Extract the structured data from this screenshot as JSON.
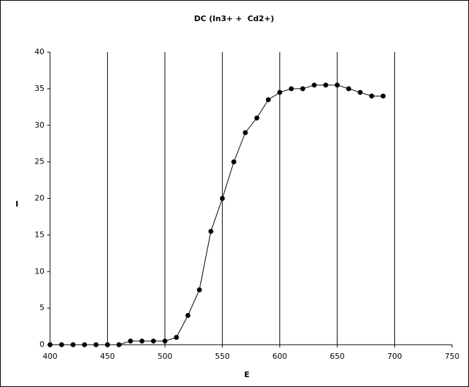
{
  "chart_data": {
    "type": "line",
    "title": "DC (In3+ +  Cd2+)",
    "x_label": "E",
    "y_label": "I",
    "x": [
      400,
      410,
      420,
      430,
      440,
      450,
      460,
      470,
      480,
      490,
      500,
      510,
      520,
      530,
      540,
      550,
      560,
      570,
      580,
      590,
      600,
      610,
      620,
      630,
      640,
      650,
      660,
      670,
      680,
      690
    ],
    "series": [
      {
        "color": "#000000",
        "values": [
          0,
          0,
          0,
          0,
          0,
          0,
          0,
          0.5,
          0.5,
          0.5,
          0.5,
          1,
          4,
          7.5,
          15.5,
          20,
          25,
          29,
          31,
          33.5,
          34.5,
          35,
          35,
          35.5,
          35.5,
          35.5,
          35,
          34.5,
          34,
          34
        ]
      }
    ],
    "xlim": [
      400,
      750
    ],
    "xticks": [
      400,
      450,
      500,
      550,
      600,
      650,
      700,
      750
    ],
    "ylim": [
      0,
      40
    ],
    "yticks": [
      0,
      5,
      10,
      15,
      20,
      25,
      30,
      35,
      40
    ],
    "grid": "x"
  }
}
